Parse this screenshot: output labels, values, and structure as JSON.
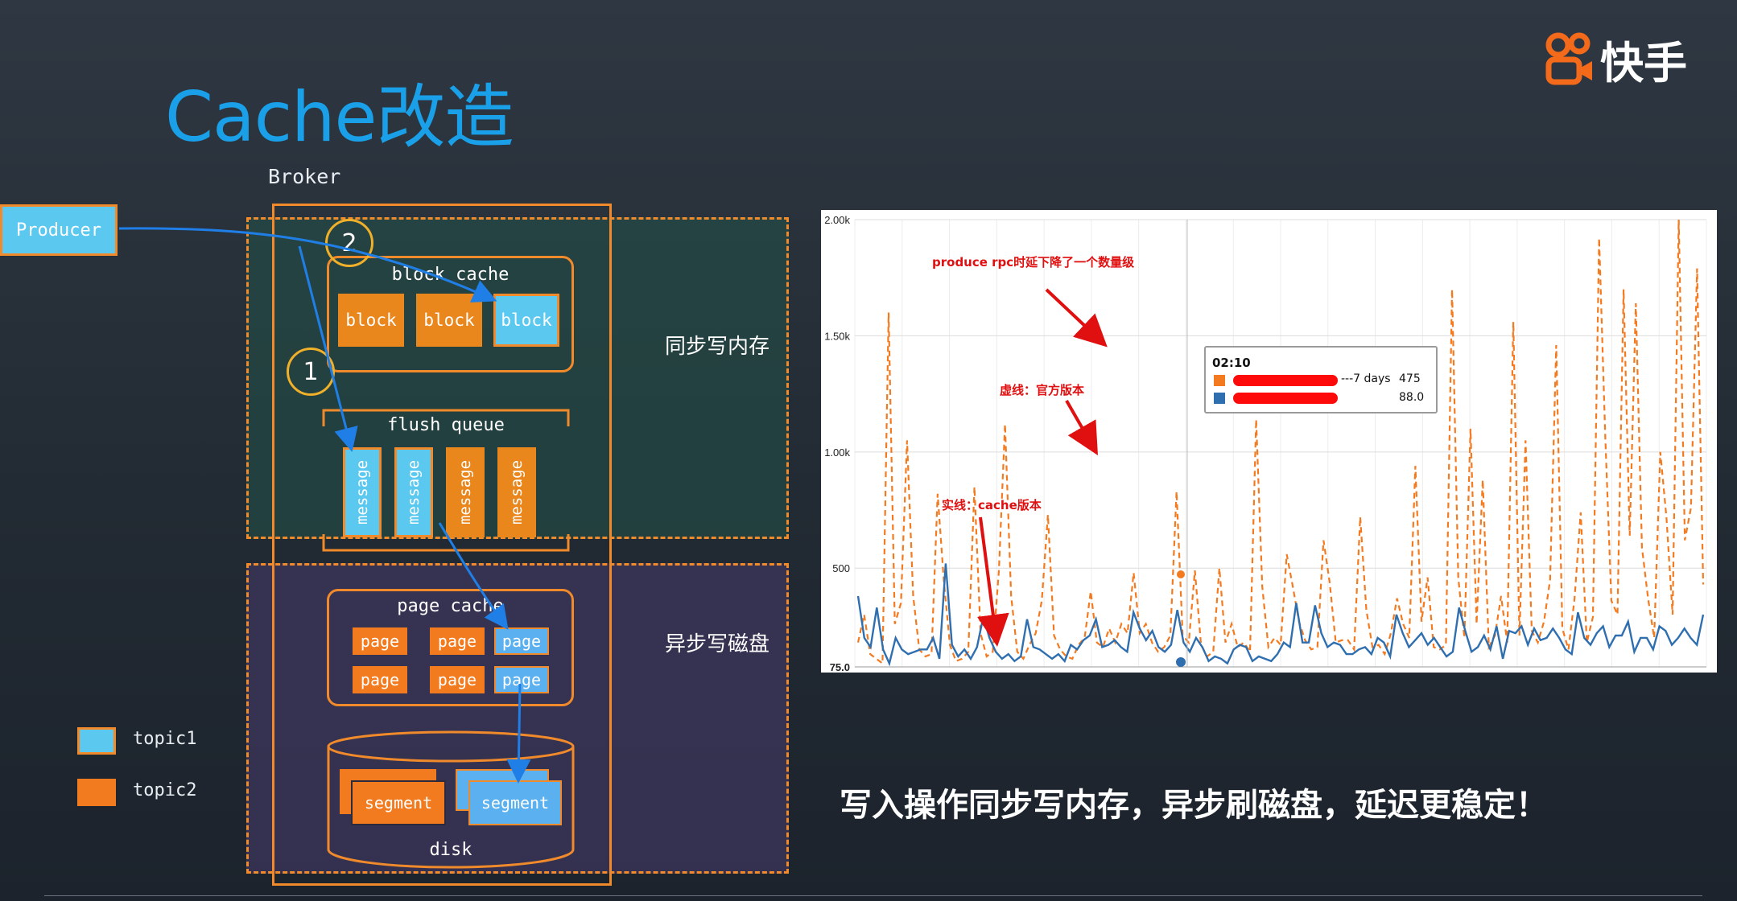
{
  "slide": {
    "title": "Cache改造",
    "logo": {
      "icon": "kuaishou-logo-icon",
      "text": "快手",
      "color": "#f36a1b"
    },
    "caption": "写入操作同步写内存，异步刷磁盘，延迟更稳定！"
  },
  "diagram": {
    "producer_label": "Producer",
    "broker_label": "Broker",
    "sync_zone_label": "同步写内存",
    "async_zone_label": "异步写磁盘",
    "step1": "1",
    "step2": "2",
    "block_cache": {
      "label": "block cache",
      "blocks": [
        {
          "label": "block",
          "topic": "topic2"
        },
        {
          "label": "block",
          "topic": "topic2"
        },
        {
          "label": "block",
          "topic": "topic1"
        }
      ]
    },
    "flush_queue": {
      "label": "flush queue",
      "messages": [
        {
          "label": "message",
          "topic": "topic1"
        },
        {
          "label": "message",
          "topic": "topic1"
        },
        {
          "label": "message",
          "topic": "topic2"
        },
        {
          "label": "message",
          "topic": "topic2"
        }
      ]
    },
    "page_cache": {
      "label": "page cache",
      "pages": [
        {
          "label": "page",
          "topic": "topic2"
        },
        {
          "label": "page",
          "topic": "topic2"
        },
        {
          "label": "page",
          "topic": "topic1"
        },
        {
          "label": "page",
          "topic": "topic2"
        },
        {
          "label": "page",
          "topic": "topic2"
        },
        {
          "label": "page",
          "topic": "topic1"
        }
      ]
    },
    "disk": {
      "label": "disk",
      "segments": [
        {
          "label": "segment",
          "topic": "topic2"
        },
        {
          "label": "segment",
          "topic": "topic1"
        }
      ]
    },
    "legend": [
      {
        "label": "topic1",
        "color": "#5bc8f0"
      },
      {
        "label": "topic2",
        "color": "#f37b1f"
      }
    ],
    "colors": {
      "topic1": "#5bc8f0",
      "topic2": "#f37b1f",
      "border": "#f08a2a",
      "arrow": "#1f7fe6"
    }
  },
  "chart_data": {
    "type": "line",
    "ylim": [
      75,
      2000
    ],
    "y_ticks": [
      "2.00k",
      "1.50k",
      "1.00k",
      "500",
      "75.0"
    ],
    "y_tick_values": [
      2000,
      1500,
      1000,
      500,
      75
    ],
    "grid": true,
    "series": [
      {
        "style": "dashed",
        "color": "#f47a20",
        "values": [
          180,
          300,
          130,
          110,
          90,
          1600,
          260,
          350,
          1050,
          380,
          150,
          120,
          130,
          820,
          450,
          170,
          100,
          110,
          140,
          850,
          220,
          120,
          140,
          490,
          1120,
          380,
          140,
          110,
          170,
          220,
          360,
          730,
          210,
          150,
          120,
          110,
          170,
          200,
          400,
          180,
          160,
          240,
          180,
          260,
          220,
          480,
          220,
          260,
          180,
          140,
          160,
          210,
          830,
          210,
          180,
          490,
          170,
          120,
          140,
          500,
          180,
          260,
          160,
          180,
          140,
          1140,
          420,
          160,
          200,
          170,
          560,
          420,
          270,
          190,
          150,
          160,
          620,
          440,
          180,
          190,
          190,
          150,
          720,
          320,
          160,
          170,
          130,
          220,
          370,
          260,
          200,
          940,
          270,
          460,
          160,
          150,
          170,
          1700,
          460,
          200,
          1100,
          260,
          880,
          160,
          210,
          380,
          180,
          1560,
          210,
          1050,
          230,
          180,
          270,
          450,
          1460,
          240,
          150,
          370,
          740,
          180,
          290,
          1920,
          1070,
          360,
          300,
          1700,
          640,
          1640,
          590,
          370,
          200,
          1000,
          720,
          300,
          2000,
          620,
          760,
          1790,
          430
        ]
      },
      {
        "style": "solid",
        "color": "#2f6fb0",
        "values": [
          380,
          200,
          160,
          330,
          150,
          90,
          200,
          150,
          130,
          140,
          150,
          150,
          200,
          110,
          520,
          170,
          120,
          150,
          110,
          160,
          290,
          200,
          140,
          110,
          130,
          100,
          120,
          280,
          160,
          150,
          130,
          110,
          130,
          100,
          170,
          150,
          190,
          210,
          280,
          160,
          170,
          190,
          160,
          140,
          310,
          240,
          190,
          230,
          160,
          140,
          170,
          320,
          180,
          140,
          200,
          160,
          100,
          120,
          110,
          90,
          150,
          170,
          160,
          100,
          120,
          110,
          100,
          130,
          180,
          160,
          350,
          180,
          180,
          340,
          220,
          160,
          180,
          170,
          130,
          130,
          150,
          160,
          130,
          200,
          180,
          120,
          300,
          220,
          160,
          190,
          220,
          170,
          200,
          160,
          120,
          140,
          330,
          230,
          140,
          160,
          210,
          150,
          250,
          110,
          230,
          220,
          250,
          170,
          240,
          190,
          200,
          240,
          200,
          150,
          130,
          310,
          200,
          170,
          220,
          250,
          160,
          210,
          210,
          270,
          140,
          200,
          200,
          150,
          250,
          230,
          170,
          200,
          240,
          200,
          170,
          300
        ]
      }
    ],
    "annotations": [
      {
        "text": "produce rpc时延下降了一个数量级",
        "color": "#e01010"
      },
      {
        "text": "虚线：官方版本",
        "color": "#e01010"
      },
      {
        "text": "实线：cache版本",
        "color": "#e01010"
      }
    ],
    "tooltip": {
      "time": "02:10",
      "rows": [
        {
          "series_color": "#f47a20",
          "label": "---7 days",
          "value": "475"
        },
        {
          "series_color": "#2f6fb0",
          "label": "",
          "value": "88.0"
        }
      ]
    }
  }
}
